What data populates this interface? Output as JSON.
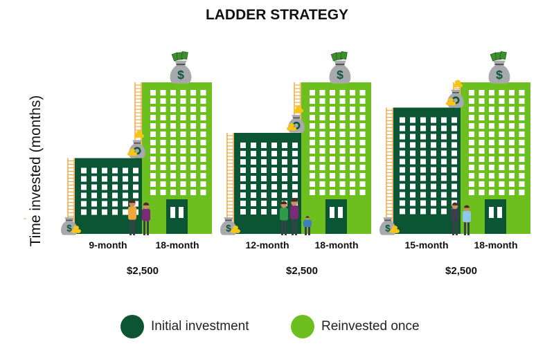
{
  "title": "LADDER STRATEGY",
  "y_axis_label": "Time invested (months)",
  "colors": {
    "initial": "#0b5535",
    "reinvested": "#6cbf1f",
    "ladder": "#f5a742",
    "bag": "#a7a9ac",
    "coin": "#f7c417"
  },
  "groups": [
    {
      "initial_label": "9-month",
      "reinvested_label": "18-month",
      "amount": "$2,500",
      "initial_months": 9,
      "reinvested_months": 18
    },
    {
      "initial_label": "12-month",
      "reinvested_label": "18-month",
      "amount": "$2,500",
      "initial_months": 12,
      "reinvested_months": 18
    },
    {
      "initial_label": "15-month",
      "reinvested_label": "18-month",
      "amount": "$2,500",
      "initial_months": 15,
      "reinvested_months": 18
    }
  ],
  "legend": [
    {
      "label": "Initial investment",
      "color": "#0b5535"
    },
    {
      "label": "Reinvested once",
      "color": "#6cbf1f"
    }
  ]
}
